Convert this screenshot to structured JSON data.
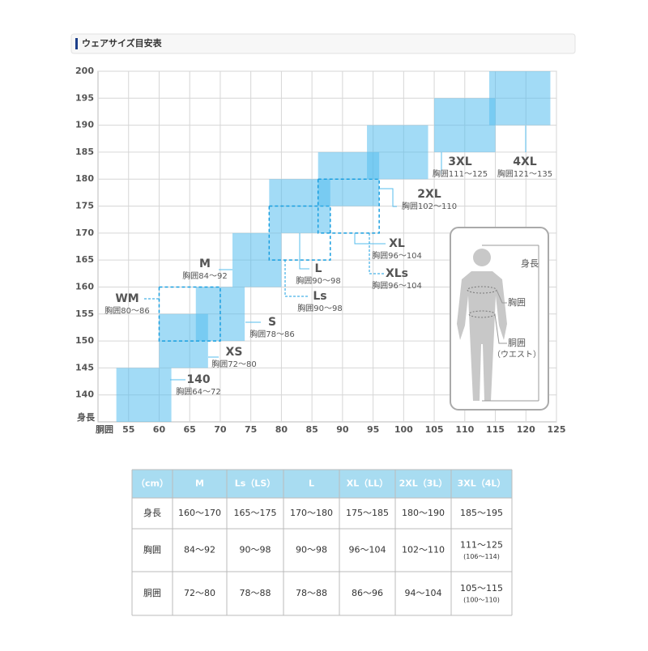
{
  "header": {
    "title": "ウェアサイズ目安表"
  },
  "chart_data": {
    "type": "box",
    "x_label": "胴囲",
    "y_label": "身長",
    "xlim": [
      50,
      125
    ],
    "xticks": [
      55,
      60,
      65,
      70,
      75,
      80,
      85,
      90,
      95,
      100,
      105,
      110,
      115,
      120,
      125
    ],
    "ylim": [
      135,
      200
    ],
    "yticks": [
      140,
      145,
      150,
      155,
      160,
      165,
      170,
      175,
      180,
      185,
      190,
      195,
      200
    ],
    "grid": true,
    "series": [
      {
        "name": "140",
        "chest": "胸囲64～72",
        "x": [
          53,
          62
        ],
        "y": [
          135,
          145
        ],
        "color": "#55bdee",
        "dashed": false
      },
      {
        "name": "XS",
        "chest": "胸囲72～80",
        "x": [
          60,
          68
        ],
        "y": [
          145,
          155
        ],
        "color": "#55bdee",
        "dashed": false
      },
      {
        "name": "S",
        "chest": "胸囲78～86",
        "x": [
          66,
          74
        ],
        "y": [
          150,
          160
        ],
        "color": "#55bdee",
        "dashed": false
      },
      {
        "name": "WM",
        "chest": "胸囲80～86",
        "x": [
          60,
          70
        ],
        "y": [
          150,
          160
        ],
        "color": "#1a9fe0",
        "dashed": true
      },
      {
        "name": "M",
        "chest": "胸囲84～92",
        "x": [
          72,
          80
        ],
        "y": [
          160,
          170
        ],
        "color": "#55bdee",
        "dashed": false
      },
      {
        "name": "L",
        "chest": "胸囲90～98",
        "x": [
          78,
          88
        ],
        "y": [
          170,
          180
        ],
        "color": "#55bdee",
        "dashed": false
      },
      {
        "name": "Ls",
        "chest": "胸囲90～98",
        "x": [
          78,
          88
        ],
        "y": [
          165,
          175
        ],
        "color": "#1a9fe0",
        "dashed": true
      },
      {
        "name": "XL",
        "chest": "胸囲96～104",
        "x": [
          86,
          96
        ],
        "y": [
          175,
          185
        ],
        "color": "#55bdee",
        "dashed": false
      },
      {
        "name": "XLs",
        "chest": "胸囲96～104",
        "x": [
          86,
          96
        ],
        "y": [
          170,
          180
        ],
        "color": "#1a9fe0",
        "dashed": true
      },
      {
        "name": "2XL",
        "chest": "胸囲102～110",
        "x": [
          94,
          104
        ],
        "y": [
          180,
          190
        ],
        "color": "#55bdee",
        "dashed": false
      },
      {
        "name": "3XL",
        "chest": "胸囲111～125",
        "x": [
          105,
          115
        ],
        "y": [
          185,
          195
        ],
        "color": "#55bdee",
        "dashed": false
      },
      {
        "name": "4XL",
        "chest": "胸囲121～135",
        "x": [
          114,
          124
        ],
        "y": [
          190,
          200
        ],
        "color": "#55bdee",
        "dashed": false
      }
    ]
  },
  "figure": {
    "height": "身長",
    "chest": "胸囲",
    "waist": [
      "胴囲",
      "（ウエスト）"
    ]
  },
  "table": {
    "header": [
      "（cm）",
      "M",
      "Ls（LS）",
      "L",
      "XL（LL）",
      "2XL（3L）",
      "3XL（4L）"
    ],
    "rows": [
      {
        "label": "身長",
        "cells": [
          [
            "160～170"
          ],
          [
            "165～175"
          ],
          [
            "170～180"
          ],
          [
            "175～185"
          ],
          [
            "180～190"
          ],
          [
            "185～195"
          ]
        ]
      },
      {
        "label": "胸囲",
        "cells": [
          [
            "84～92"
          ],
          [
            "90～98"
          ],
          [
            "90～98"
          ],
          [
            "96～104"
          ],
          [
            "102～110"
          ],
          [
            "111～125",
            "(106～114)"
          ]
        ]
      },
      {
        "label": "胴囲",
        "cells": [
          [
            "72～80"
          ],
          [
            "78～88"
          ],
          [
            "78～88"
          ],
          [
            "86～96"
          ],
          [
            "94～104"
          ],
          [
            "105～115",
            "(100～110)"
          ]
        ]
      }
    ]
  }
}
